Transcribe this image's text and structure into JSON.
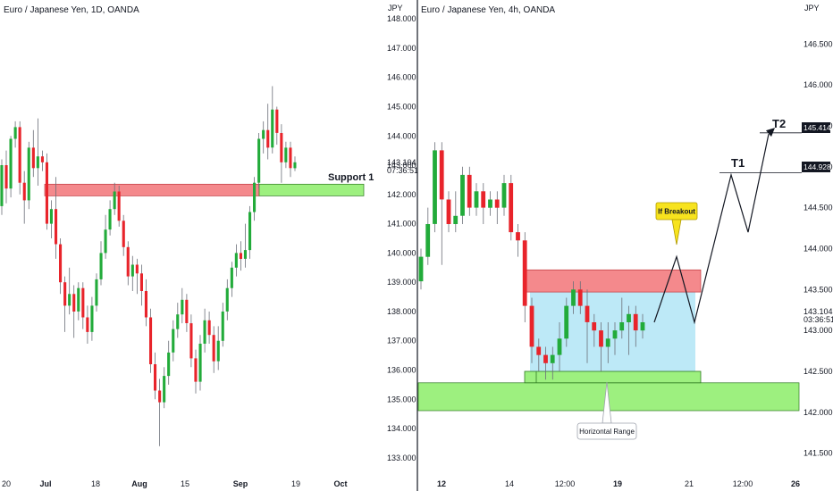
{
  "colors": {
    "up": "#22ab3a",
    "down": "#e8242b",
    "wick": "#6b6f78",
    "resistance_fill": "#f4898c",
    "support_fill": "#9df07f",
    "range_fill": "#bde9f7",
    "label_bg": "#131722",
    "price_bg": "#131722",
    "breakout_bg": "#f7e31e"
  },
  "chart_data": [
    {
      "type": "candlestick",
      "title": "Euro / Japanese Yen, 1D, OANDA",
      "currency": "JPY",
      "ylim": [
        132.6,
        148.4
      ],
      "yticks": [
        "148.000",
        "147.000",
        "146.000",
        "145.000",
        "144.000",
        "143.000",
        "142.000",
        "141.000",
        "140.000",
        "139.000",
        "138.000",
        "137.000",
        "136.000",
        "135.000",
        "134.000",
        "133.000"
      ],
      "xtick_labels": [
        "20",
        "Jul",
        "18",
        "Aug",
        "15",
        "Sep",
        "19",
        "Oct"
      ],
      "last_price": "143.104",
      "countdown": "07:36:51",
      "zones": [
        {
          "name": "resistance-zone",
          "y_top": 142.35,
          "y_bottom": 141.95
        },
        {
          "name": "support-zone",
          "label": "Support 1",
          "y_top": 142.35,
          "y_bottom": 141.95
        }
      ],
      "candles": [
        [
          141.6,
          143.0,
          141.3,
          143.2
        ],
        [
          143.0,
          142.2,
          141.7,
          143.5
        ],
        [
          142.2,
          143.9,
          141.9,
          144.0
        ],
        [
          143.9,
          144.3,
          143.6,
          144.5
        ],
        [
          144.3,
          142.4,
          142.0,
          144.5
        ],
        [
          142.4,
          141.8,
          141.0,
          142.8
        ],
        [
          141.8,
          143.6,
          141.5,
          143.8
        ],
        [
          143.6,
          142.9,
          142.6,
          144.2
        ],
        [
          142.9,
          143.3,
          142.3,
          144.6
        ],
        [
          143.3,
          143.1,
          142.8,
          143.5
        ],
        [
          143.1,
          141.0,
          140.8,
          143.4
        ],
        [
          141.0,
          141.5,
          140.5,
          141.8
        ],
        [
          141.5,
          140.3,
          139.8,
          142.6
        ],
        [
          140.3,
          139.0,
          138.6,
          140.5
        ],
        [
          139.0,
          138.2,
          137.3,
          139.2
        ],
        [
          138.2,
          138.6,
          137.9,
          139.5
        ],
        [
          138.6,
          138.0,
          137.1,
          138.9
        ],
        [
          138.0,
          138.8,
          137.7,
          139.0
        ],
        [
          138.8,
          137.8,
          137.4,
          139.0
        ],
        [
          137.8,
          137.3,
          136.9,
          138.2
        ],
        [
          137.3,
          138.2,
          137.0,
          138.5
        ],
        [
          138.2,
          139.1,
          138.0,
          139.3
        ],
        [
          139.1,
          140.0,
          138.9,
          140.4
        ],
        [
          140.0,
          140.8,
          139.8,
          141.3
        ],
        [
          140.8,
          141.5,
          140.6,
          141.8
        ],
        [
          141.5,
          142.1,
          141.3,
          142.4
        ],
        [
          142.1,
          141.1,
          140.9,
          142.3
        ],
        [
          141.1,
          140.2,
          139.9,
          141.3
        ],
        [
          140.2,
          139.2,
          138.9,
          140.4
        ],
        [
          139.2,
          139.6,
          138.7,
          139.9
        ],
        [
          139.6,
          139.3,
          138.6,
          139.8
        ],
        [
          139.3,
          138.7,
          138.2,
          139.6
        ],
        [
          138.7,
          137.8,
          137.5,
          139.1
        ],
        [
          137.8,
          136.2,
          135.9,
          138.1
        ],
        [
          136.2,
          135.3,
          135.0,
          136.6
        ],
        [
          135.3,
          134.9,
          133.4,
          135.7
        ],
        [
          134.9,
          135.8,
          134.7,
          136.1
        ],
        [
          135.8,
          136.6,
          135.5,
          137.0
        ],
        [
          136.6,
          137.4,
          136.3,
          137.7
        ],
        [
          137.4,
          137.9,
          137.1,
          138.3
        ],
        [
          137.9,
          138.4,
          137.6,
          138.8
        ],
        [
          138.4,
          137.6,
          137.3,
          138.6
        ],
        [
          137.6,
          136.4,
          136.1,
          137.9
        ],
        [
          136.4,
          135.6,
          135.2,
          136.7
        ],
        [
          135.6,
          136.9,
          135.3,
          137.2
        ],
        [
          136.9,
          137.7,
          136.6,
          138.1
        ],
        [
          137.7,
          137.2,
          136.9,
          138.0
        ],
        [
          137.2,
          136.3,
          135.9,
          137.5
        ],
        [
          136.3,
          137.0,
          136.0,
          137.5
        ],
        [
          137.0,
          138.0,
          136.8,
          138.3
        ],
        [
          138.0,
          138.8,
          137.7,
          139.1
        ],
        [
          138.8,
          139.5,
          138.5,
          139.7
        ],
        [
          139.5,
          140.0,
          139.2,
          140.3
        ],
        [
          140.0,
          139.8,
          139.4,
          140.4
        ],
        [
          139.8,
          140.1,
          139.5,
          141.0
        ],
        [
          140.1,
          141.4,
          139.8,
          141.6
        ],
        [
          141.4,
          142.4,
          141.1,
          142.6
        ],
        [
          142.4,
          143.9,
          142.2,
          144.1
        ],
        [
          143.9,
          144.2,
          143.4,
          144.5
        ],
        [
          144.2,
          143.6,
          143.2,
          145.1
        ],
        [
          143.6,
          144.9,
          143.4,
          145.7
        ],
        [
          144.9,
          144.1,
          143.7,
          145.0
        ],
        [
          144.1,
          143.1,
          142.4,
          144.4
        ],
        [
          143.1,
          143.6,
          142.9,
          143.8
        ],
        [
          143.6,
          142.9,
          142.6,
          143.8
        ],
        [
          142.9,
          143.1,
          142.8,
          143.3
        ]
      ]
    },
    {
      "type": "candlestick",
      "title": "Euro / Japanese Yen, 4h, OANDA",
      "currency": "JPY",
      "ylim": [
        141.3,
        146.95
      ],
      "yticks": [
        "146.500",
        "146.000",
        "145.500",
        "145.000",
        "144.500",
        "144.000",
        "143.500",
        "143.000",
        "142.500",
        "142.000",
        "141.500"
      ],
      "xtick_labels": [
        "12",
        "14",
        "12:00",
        "19",
        "21",
        "12:00",
        "26"
      ],
      "last_price": "143.104",
      "countdown": "03:36:51",
      "price_tags": [
        "145.414",
        "144.928"
      ],
      "targets": [
        "T1",
        "T2"
      ],
      "callouts": {
        "breakout": "If Breakout",
        "range": "Horizontal Range"
      },
      "zones": [
        {
          "name": "resistance-zone",
          "y_top": 143.74,
          "y_bottom": 143.47
        },
        {
          "name": "range-box",
          "y_top": 143.47,
          "y_bottom": 142.5
        },
        {
          "name": "range-bottom-band",
          "y_top": 142.5,
          "y_bottom": 142.36
        },
        {
          "name": "support-zone",
          "y_top": 142.36,
          "y_bottom": 142.02
        }
      ],
      "projection": [
        [
          143.1,
          ""
        ],
        [
          143.9,
          "breakout"
        ],
        [
          143.1,
          ""
        ],
        [
          144.9,
          "T1"
        ],
        [
          144.2,
          ""
        ],
        [
          145.4,
          "T2"
        ]
      ],
      "candles": [
        [
          143.6,
          143.9,
          143.5,
          144.0
        ],
        [
          143.9,
          144.3,
          143.8,
          144.5
        ],
        [
          144.3,
          145.2,
          144.2,
          145.3
        ],
        [
          145.2,
          144.6,
          143.8,
          145.3
        ],
        [
          144.6,
          144.3,
          144.2,
          144.7
        ],
        [
          144.3,
          144.4,
          144.2,
          144.7
        ],
        [
          144.4,
          144.9,
          144.3,
          145.0
        ],
        [
          144.9,
          144.5,
          144.4,
          145.0
        ],
        [
          144.5,
          144.7,
          144.4,
          144.8
        ],
        [
          144.7,
          144.5,
          144.3,
          144.8
        ],
        [
          144.5,
          144.6,
          144.4,
          144.7
        ],
        [
          144.6,
          144.5,
          144.3,
          144.7
        ],
        [
          144.5,
          144.8,
          144.4,
          144.9
        ],
        [
          144.8,
          144.2,
          144.1,
          144.9
        ],
        [
          144.2,
          144.1,
          143.9,
          144.3
        ],
        [
          144.1,
          143.3,
          143.1,
          144.2
        ],
        [
          143.3,
          142.8,
          142.6,
          143.4
        ],
        [
          142.8,
          142.7,
          142.5,
          142.9
        ],
        [
          142.7,
          142.6,
          142.4,
          142.8
        ],
        [
          142.6,
          142.7,
          142.4,
          142.8
        ],
        [
          142.7,
          142.9,
          142.5,
          143.1
        ],
        [
          142.9,
          143.3,
          142.8,
          143.4
        ],
        [
          143.3,
          143.5,
          143.2,
          143.6
        ],
        [
          143.5,
          143.3,
          143.2,
          143.6
        ],
        [
          143.3,
          143.1,
          142.6,
          143.5
        ],
        [
          143.1,
          143.0,
          142.8,
          143.2
        ],
        [
          143.0,
          142.8,
          142.5,
          143.1
        ],
        [
          142.8,
          142.9,
          142.6,
          143.1
        ],
        [
          142.9,
          143.0,
          142.7,
          143.1
        ],
        [
          143.0,
          143.1,
          142.9,
          143.4
        ],
        [
          143.1,
          143.2,
          142.7,
          143.3
        ],
        [
          143.2,
          143.0,
          142.8,
          143.3
        ],
        [
          143.0,
          143.1,
          142.9,
          143.2
        ]
      ]
    }
  ]
}
